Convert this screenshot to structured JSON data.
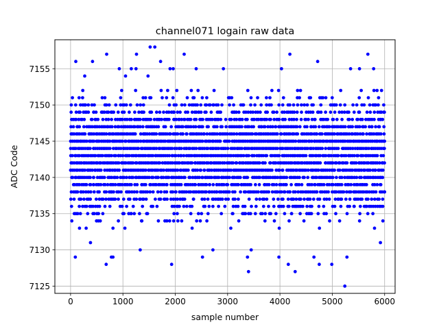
{
  "chart_data": {
    "type": "scatter",
    "title": "channel071 logain raw data",
    "xlabel": "sample number",
    "ylabel": "ADC Code",
    "xlim": [
      -300,
      6200
    ],
    "ylim": [
      7124,
      7159
    ],
    "xticks": [
      0,
      1000,
      2000,
      3000,
      4000,
      5000,
      6000
    ],
    "yticks": [
      7125,
      7130,
      7135,
      7140,
      7145,
      7150,
      7155
    ],
    "grid": true,
    "marker_color": "#0000ff",
    "n_samples": 6000,
    "x_step": 1,
    "value_range": [
      7125,
      7158
    ],
    "dense_band": [
      7133,
      7152
    ],
    "series": [
      {
        "values_note": "ADC code per sample; dense band 7133-7152, sparse outliers",
        "outliers": [
          {
            "x": 90,
            "y": 7129
          },
          {
            "x": 100,
            "y": 7156
          },
          {
            "x": 270,
            "y": 7154
          },
          {
            "x": 380,
            "y": 7131
          },
          {
            "x": 420,
            "y": 7156
          },
          {
            "x": 680,
            "y": 7128
          },
          {
            "x": 690,
            "y": 7157
          },
          {
            "x": 780,
            "y": 7129
          },
          {
            "x": 810,
            "y": 7129
          },
          {
            "x": 930,
            "y": 7155
          },
          {
            "x": 1050,
            "y": 7154
          },
          {
            "x": 1160,
            "y": 7155
          },
          {
            "x": 1250,
            "y": 7155
          },
          {
            "x": 1260,
            "y": 7157
          },
          {
            "x": 1330,
            "y": 7130
          },
          {
            "x": 1480,
            "y": 7154
          },
          {
            "x": 1520,
            "y": 7158
          },
          {
            "x": 1610,
            "y": 7158
          },
          {
            "x": 1720,
            "y": 7156
          },
          {
            "x": 1900,
            "y": 7155
          },
          {
            "x": 1930,
            "y": 7128
          },
          {
            "x": 1960,
            "y": 7155
          },
          {
            "x": 2170,
            "y": 7157
          },
          {
            "x": 2400,
            "y": 7155
          },
          {
            "x": 2520,
            "y": 7129
          },
          {
            "x": 2720,
            "y": 7130
          },
          {
            "x": 2920,
            "y": 7155
          },
          {
            "x": 3380,
            "y": 7129
          },
          {
            "x": 3400,
            "y": 7127
          },
          {
            "x": 3450,
            "y": 7130
          },
          {
            "x": 3980,
            "y": 7129
          },
          {
            "x": 4030,
            "y": 7155
          },
          {
            "x": 4160,
            "y": 7128
          },
          {
            "x": 4190,
            "y": 7157
          },
          {
            "x": 4290,
            "y": 7127
          },
          {
            "x": 4650,
            "y": 7129
          },
          {
            "x": 4720,
            "y": 7156
          },
          {
            "x": 4750,
            "y": 7128
          },
          {
            "x": 4990,
            "y": 7128
          },
          {
            "x": 5240,
            "y": 7125
          },
          {
            "x": 5280,
            "y": 7129
          },
          {
            "x": 5350,
            "y": 7155
          },
          {
            "x": 5520,
            "y": 7155
          },
          {
            "x": 5680,
            "y": 7157
          },
          {
            "x": 5790,
            "y": 7155
          },
          {
            "x": 5920,
            "y": 7131
          }
        ]
      }
    ]
  }
}
